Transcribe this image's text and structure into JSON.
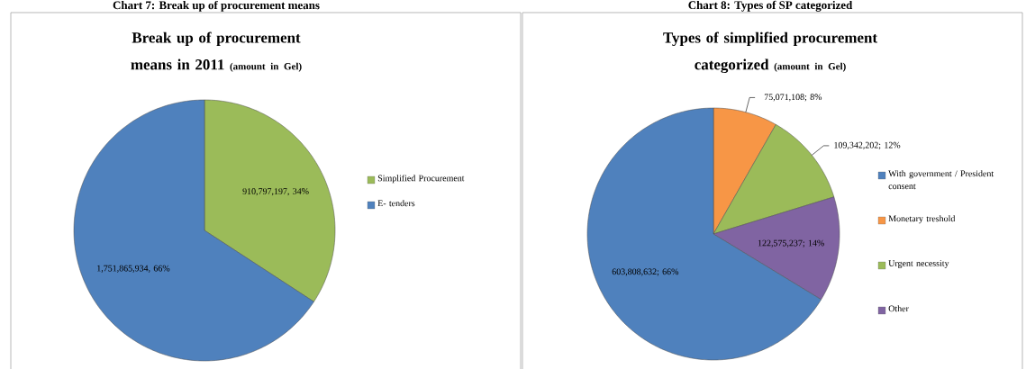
{
  "chart_data": [
    {
      "type": "pie",
      "title": "Break up of procurement means in 2011",
      "subtitle": "(amount in Gel)",
      "annotations": [
        "Chart 7: Break up of procurement means"
      ],
      "categories": [
        "Simplified Procurement",
        "E- tenders"
      ],
      "values": [
        910797197,
        1751865934
      ],
      "colors": [
        "#9bbb59",
        "#4f81bd"
      ],
      "value_labels": [
        "910,797,197, 34%",
        "1,751,865,934, 66%"
      ],
      "legend": "right"
    },
    {
      "type": "pie",
      "title": "Types of simplified procurement categorized",
      "subtitle": "(amount in Gel)",
      "annotations": [
        "Chart 8: Types of SP categorized"
      ],
      "categories": [
        "With government / President consent",
        "Monetary treshold",
        "Urgent necessity",
        "Other"
      ],
      "values": [
        603808632,
        75071108,
        109342202,
        122575237
      ],
      "colors": [
        "#4f81bd",
        "#f79646",
        "#9bbb59",
        "#8064a2"
      ],
      "value_labels": [
        "603,808,632; 66%",
        "75,071,108; 8%",
        "109,342,202; 12%",
        "122,575,237; 14%"
      ],
      "legend": "right"
    }
  ]
}
